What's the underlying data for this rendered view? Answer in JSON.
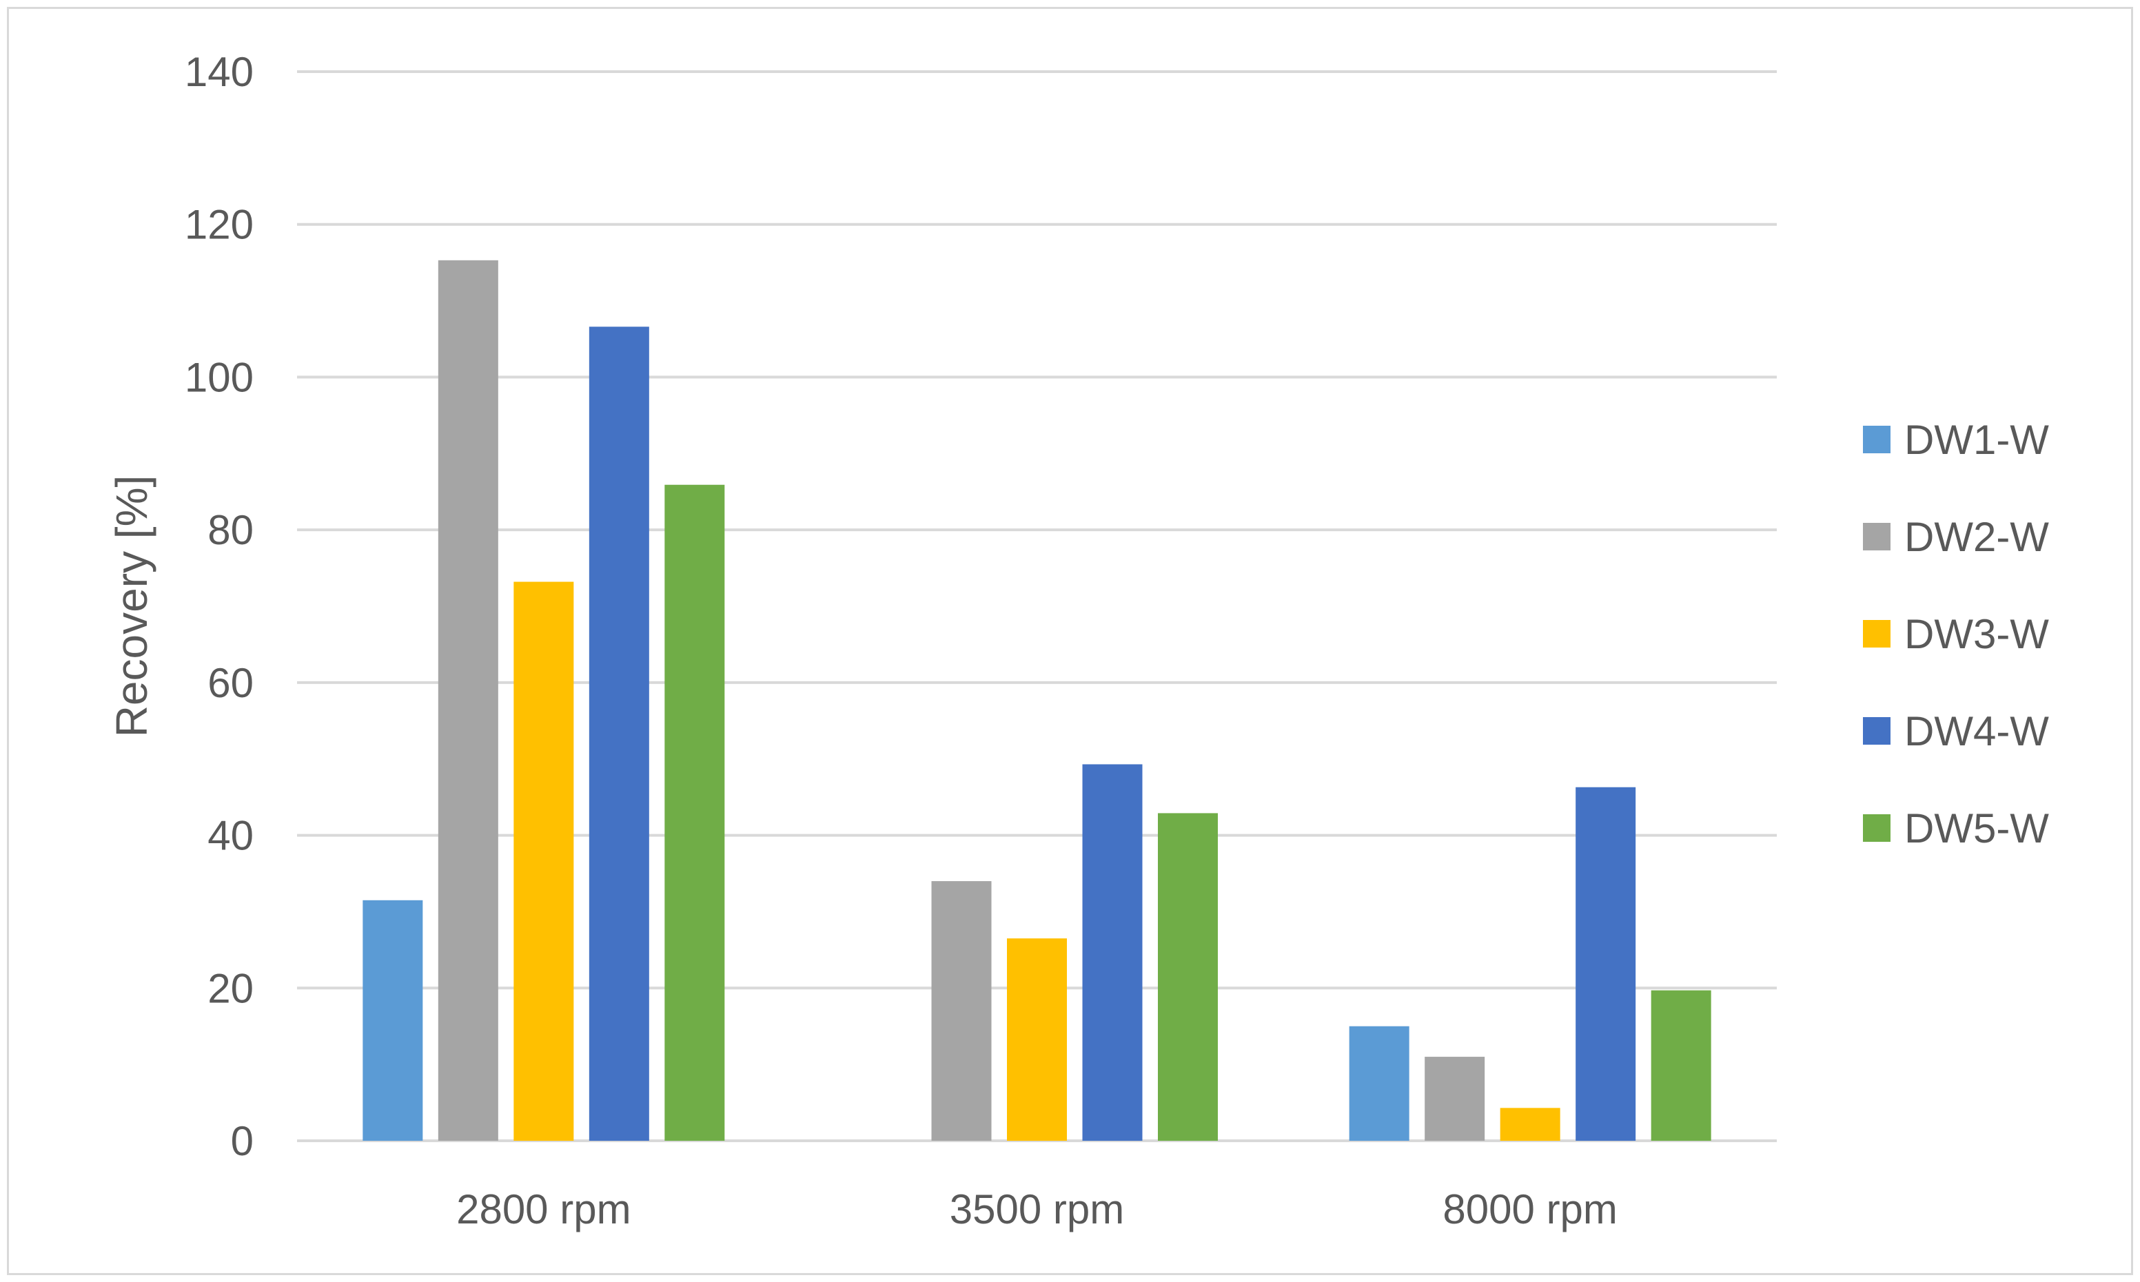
{
  "chart_data": {
    "type": "bar",
    "title": "",
    "xlabel": "",
    "ylabel": "Recovery [%]",
    "ylim": [
      0,
      140
    ],
    "yticks": [
      0,
      20,
      40,
      60,
      80,
      100,
      120,
      140
    ],
    "grid": true,
    "legend_position": "right",
    "categories": [
      "2800 rpm",
      "3500 rpm",
      "8000 rpm"
    ],
    "series": [
      {
        "name": "DW1-W",
        "color": "#5b9bd5",
        "values": [
          31.5,
          null,
          15
        ]
      },
      {
        "name": "DW2-W",
        "color": "#a5a5a5",
        "values": [
          115.3,
          34,
          11
        ]
      },
      {
        "name": "DW3-W",
        "color": "#ffc000",
        "values": [
          73.2,
          26.5,
          4.3
        ]
      },
      {
        "name": "DW4-W",
        "color": "#4472c4",
        "values": [
          106.6,
          49.3,
          46.3
        ]
      },
      {
        "name": "DW5-W",
        "color": "#70ad47",
        "values": [
          85.9,
          42.9,
          19.7
        ]
      }
    ]
  }
}
